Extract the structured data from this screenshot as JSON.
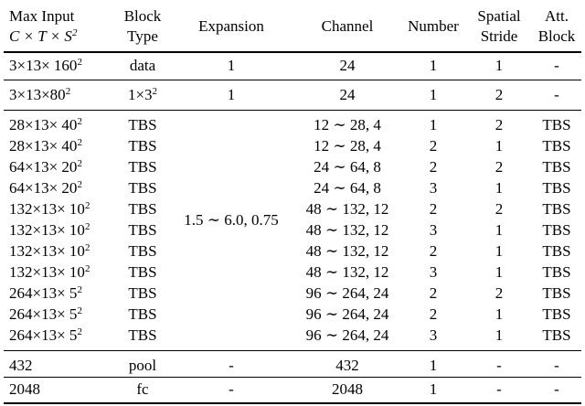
{
  "headers": {
    "max_input_line1": "Max Input",
    "max_input_line2": "C × T × S",
    "max_input_line2_sup": "2",
    "block_type_line1": "Block",
    "block_type_line2": "Type",
    "expansion": "Expansion",
    "channel": "Channel",
    "number": "Number",
    "spatial_line1": "Spatial",
    "spatial_line2": "Stride",
    "att_line1": "Att.",
    "att_line2": "Block"
  },
  "rows": [
    {
      "input": "3×13× 160",
      "sup": "2",
      "type": "data",
      "expansion": "1",
      "channel": "24",
      "number": "1",
      "stride": "1",
      "att": "-"
    },
    {
      "input": "3×13×80",
      "sup": "2",
      "type": "1×3",
      "type_sup": "2",
      "expansion": "1",
      "channel": "24",
      "number": "1",
      "stride": "2",
      "att": "-"
    },
    {
      "input": "28×13× 40",
      "sup": "2",
      "type": "TBS",
      "channel": "12 ∼ 28, 4",
      "number": "1",
      "stride": "2",
      "att": "TBS"
    },
    {
      "input": "28×13× 40",
      "sup": "2",
      "type": "TBS",
      "channel": "12 ∼ 28, 4",
      "number": "2",
      "stride": "1",
      "att": "TBS"
    },
    {
      "input": "64×13× 20",
      "sup": "2",
      "type": "TBS",
      "channel": "24 ∼ 64, 8",
      "number": "2",
      "stride": "2",
      "att": "TBS"
    },
    {
      "input": "64×13× 20",
      "sup": "2",
      "type": "TBS",
      "channel": "24 ∼ 64, 8",
      "number": "3",
      "stride": "1",
      "att": "TBS"
    },
    {
      "input": "132×13× 10",
      "sup": "2",
      "type": "TBS",
      "channel": "48 ∼ 132, 12",
      "number": "2",
      "stride": "2",
      "att": "TBS"
    },
    {
      "input": "132×13× 10",
      "sup": "2",
      "type": "TBS",
      "channel": "48 ∼ 132, 12",
      "number": "3",
      "stride": "1",
      "att": "TBS"
    },
    {
      "input": "132×13× 10",
      "sup": "2",
      "type": "TBS",
      "channel": "48 ∼ 132, 12",
      "number": "2",
      "stride": "1",
      "att": "TBS"
    },
    {
      "input": "132×13× 10",
      "sup": "2",
      "type": "TBS",
      "channel": "48 ∼ 132, 12",
      "number": "3",
      "stride": "1",
      "att": "TBS"
    },
    {
      "input": "264×13× 5",
      "sup": "2",
      "type": "TBS",
      "channel": "96 ∼ 264, 24",
      "number": "2",
      "stride": "2",
      "att": "TBS"
    },
    {
      "input": "264×13× 5",
      "sup": "2",
      "type": "TBS",
      "channel": "96 ∼ 264, 24",
      "number": "2",
      "stride": "1",
      "att": "TBS"
    },
    {
      "input": "264×13× 5",
      "sup": "2",
      "type": "TBS",
      "channel": "96 ∼ 264, 24",
      "number": "3",
      "stride": "1",
      "att": "TBS"
    },
    {
      "input": "432",
      "type": "pool",
      "expansion": "-",
      "channel": "432",
      "number": "1",
      "stride": "-",
      "att": "-"
    },
    {
      "input": "2048",
      "type": "fc",
      "expansion": "-",
      "channel": "2048",
      "number": "1",
      "stride": "-",
      "att": "-"
    }
  ],
  "merged_expansion": "1.5 ∼ 6.0, 0.75"
}
